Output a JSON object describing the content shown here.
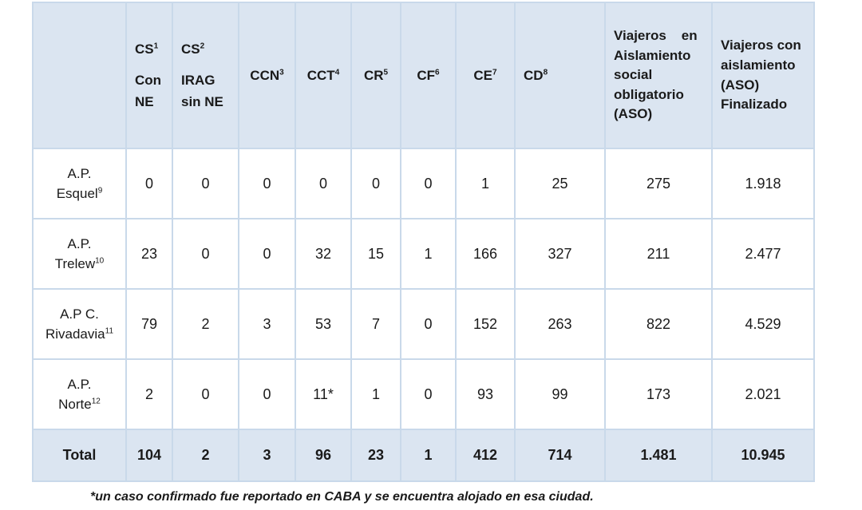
{
  "table": {
    "headers": {
      "cs1": {
        "label": "CS",
        "sup": "1",
        "sub1": "Con",
        "sub2": "NE"
      },
      "cs2": {
        "label": "CS",
        "sup": "2",
        "sub1": "IRAG",
        "sub2": "sin NE"
      },
      "ccn": {
        "label": "CCN",
        "sup": "3"
      },
      "cct": {
        "label": "CCT",
        "sup": "4"
      },
      "cr": {
        "label": "CR",
        "sup": "5"
      },
      "cf": {
        "label": "CF",
        "sup": "6"
      },
      "ce": {
        "label": "CE",
        "sup": "7"
      },
      "cd": {
        "label": "CD",
        "sup": "8"
      },
      "aso": {
        "line1": "Viajeros    en",
        "line2": "Aislamiento",
        "line3": "social",
        "line4": "obligatorio",
        "line5": "(ASO)"
      },
      "aso_fin": {
        "line1": "Viajeros con",
        "line2": "aislamiento",
        "line3": "(ASO)",
        "line4": "Finalizado"
      }
    },
    "rows": [
      {
        "name1": "A.P.",
        "name2": "Esquel",
        "sup": "9",
        "values": [
          "0",
          "0",
          "0",
          "0",
          "0",
          "0",
          "1",
          "25",
          "275",
          "1.918"
        ]
      },
      {
        "name1": "A.P.",
        "name2": "Trelew",
        "sup": "10",
        "values": [
          "23",
          "0",
          "0",
          "32",
          "15",
          "1",
          "166",
          "327",
          "211",
          "2.477"
        ]
      },
      {
        "name1": "A.P C.",
        "name2": "Rivadavia",
        "sup": "11",
        "values": [
          "79",
          "2",
          "3",
          "53",
          "7",
          "0",
          "152",
          "263",
          "822",
          "4.529"
        ]
      },
      {
        "name1": "A.P.",
        "name2": "Norte",
        "sup": "12",
        "values": [
          "2",
          "0",
          "0",
          "11*",
          "1",
          "0",
          "93",
          "99",
          "173",
          "2.021"
        ]
      }
    ],
    "total": {
      "label": "Total",
      "values": [
        "104",
        "2",
        "3",
        "96",
        "23",
        "1",
        "412",
        "714",
        "1.481",
        "10.945"
      ]
    }
  },
  "footnote": "*un caso confirmado fue reportado en CABA y se encuentra alojado en esa ciudad."
}
